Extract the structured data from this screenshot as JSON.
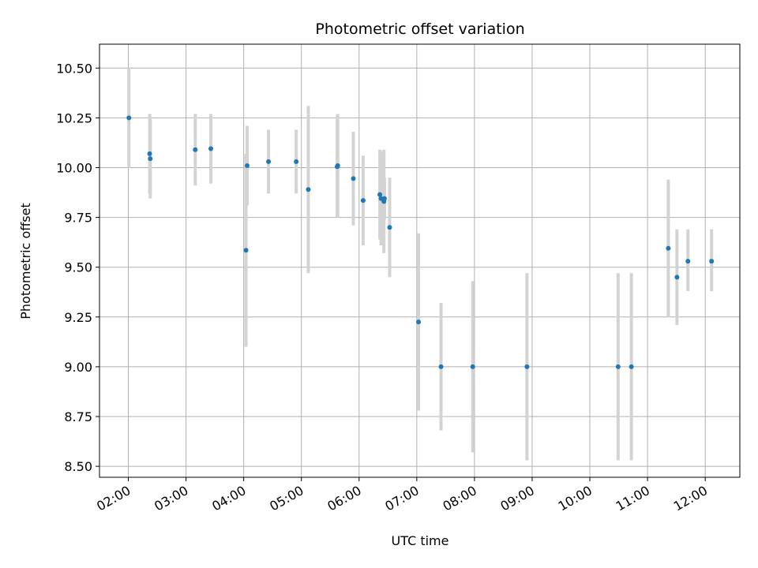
{
  "chart_data": {
    "type": "scatter",
    "title": "Photometric offset variation",
    "xlabel": "UTC time",
    "ylabel": "Photometric offset",
    "x_unit": "hours UTC",
    "xlim": [
      1.5,
      12.6
    ],
    "ylim": [
      8.445,
      10.62
    ],
    "grid": true,
    "x_ticks": [
      {
        "value": 2,
        "label": "02:00"
      },
      {
        "value": 3,
        "label": "03:00"
      },
      {
        "value": 4,
        "label": "04:00"
      },
      {
        "value": 5,
        "label": "05:00"
      },
      {
        "value": 6,
        "label": "06:00"
      },
      {
        "value": 7,
        "label": "07:00"
      },
      {
        "value": 8,
        "label": "08:00"
      },
      {
        "value": 9,
        "label": "09:00"
      },
      {
        "value": 10,
        "label": "10:00"
      },
      {
        "value": 11,
        "label": "11:00"
      },
      {
        "value": 12,
        "label": "12:00"
      }
    ],
    "y_ticks": [
      {
        "value": 8.5,
        "label": "8.50"
      },
      {
        "value": 8.75,
        "label": "8.75"
      },
      {
        "value": 9.0,
        "label": "9.00"
      },
      {
        "value": 9.25,
        "label": "9.25"
      },
      {
        "value": 9.5,
        "label": "9.50"
      },
      {
        "value": 9.75,
        "label": "9.75"
      },
      {
        "value": 10.0,
        "label": "10.00"
      },
      {
        "value": 10.25,
        "label": "10.25"
      },
      {
        "value": 10.5,
        "label": "10.50"
      }
    ],
    "marker_color": "#1f77b4",
    "errorbar_color": "#d3d3d3",
    "points": [
      {
        "x": 2.01,
        "y": 10.25,
        "ylow": 10.0,
        "yhigh": 10.5
      },
      {
        "x": 2.37,
        "y": 10.07,
        "ylow": 9.87,
        "yhigh": 10.27
      },
      {
        "x": 2.38,
        "y": 10.045,
        "ylow": 9.845,
        "yhigh": 10.245
      },
      {
        "x": 3.16,
        "y": 10.09,
        "ylow": 9.91,
        "yhigh": 10.27
      },
      {
        "x": 3.43,
        "y": 10.095,
        "ylow": 9.92,
        "yhigh": 10.27
      },
      {
        "x": 4.04,
        "y": 9.585,
        "ylow": 9.1,
        "yhigh": 10.07
      },
      {
        "x": 4.06,
        "y": 10.01,
        "ylow": 9.81,
        "yhigh": 10.21
      },
      {
        "x": 4.43,
        "y": 10.03,
        "ylow": 9.87,
        "yhigh": 10.19
      },
      {
        "x": 4.91,
        "y": 10.03,
        "ylow": 9.87,
        "yhigh": 10.19
      },
      {
        "x": 5.12,
        "y": 9.89,
        "ylow": 9.47,
        "yhigh": 10.31
      },
      {
        "x": 5.62,
        "y": 10.005,
        "ylow": 9.75,
        "yhigh": 10.26
      },
      {
        "x": 5.63,
        "y": 10.01,
        "ylow": 9.75,
        "yhigh": 10.27
      },
      {
        "x": 5.9,
        "y": 9.945,
        "ylow": 9.71,
        "yhigh": 10.18
      },
      {
        "x": 6.07,
        "y": 9.835,
        "ylow": 9.61,
        "yhigh": 10.06
      },
      {
        "x": 6.36,
        "y": 9.865,
        "ylow": 9.64,
        "yhigh": 10.09
      },
      {
        "x": 6.38,
        "y": 9.845,
        "ylow": 9.61,
        "yhigh": 10.08
      },
      {
        "x": 6.43,
        "y": 9.83,
        "ylow": 9.57,
        "yhigh": 10.09
      },
      {
        "x": 6.44,
        "y": 9.845,
        "ylow": 9.74,
        "yhigh": 9.95
      },
      {
        "x": 6.53,
        "y": 9.7,
        "ylow": 9.45,
        "yhigh": 9.95
      },
      {
        "x": 7.03,
        "y": 9.225,
        "ylow": 8.78,
        "yhigh": 9.67
      },
      {
        "x": 7.42,
        "y": 9.0,
        "ylow": 8.68,
        "yhigh": 9.32
      },
      {
        "x": 7.97,
        "y": 9.0,
        "ylow": 8.57,
        "yhigh": 9.43
      },
      {
        "x": 8.91,
        "y": 9.0,
        "ylow": 8.53,
        "yhigh": 9.47
      },
      {
        "x": 10.49,
        "y": 9.0,
        "ylow": 8.53,
        "yhigh": 9.47
      },
      {
        "x": 10.72,
        "y": 9.0,
        "ylow": 8.53,
        "yhigh": 9.47
      },
      {
        "x": 11.36,
        "y": 9.595,
        "ylow": 9.25,
        "yhigh": 9.94
      },
      {
        "x": 11.51,
        "y": 9.45,
        "ylow": 9.21,
        "yhigh": 9.69
      },
      {
        "x": 11.7,
        "y": 9.53,
        "ylow": 9.38,
        "yhigh": 9.69
      },
      {
        "x": 12.11,
        "y": 9.53,
        "ylow": 9.38,
        "yhigh": 9.69
      }
    ]
  }
}
